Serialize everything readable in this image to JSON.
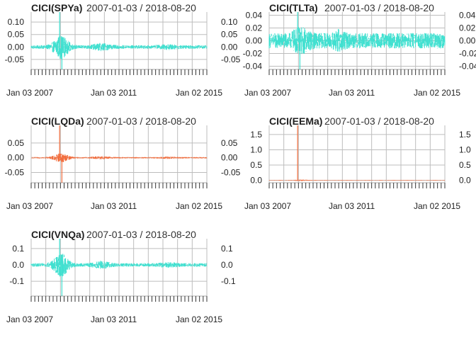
{
  "chart_data": [
    {
      "type": "line",
      "title": "CICI(SPYa)",
      "subtitle": "2007-01-03 / 2018-08-20",
      "color": "#40E0D0",
      "x_tick_labels": [
        "Jan 03 2007",
        "Jan 03 2011",
        "Jan 02 2015"
      ],
      "y_ticks": [
        0.1,
        0.05,
        0.0,
        -0.05
      ],
      "y_tick_labels": [
        "0.10",
        "0.05",
        "0.00",
        "-0.05"
      ],
      "ylim": [
        -0.09,
        0.14
      ],
      "grid": true,
      "profile": "vol_spike",
      "spike": 0.14,
      "neg_spike": -0.09,
      "base_amp": 0.012,
      "peak_amp": 0.06
    },
    {
      "type": "line",
      "title": "CICI(TLTa)",
      "subtitle": "2007-01-03 / 2018-08-20",
      "color": "#40E0D0",
      "x_tick_labels": [
        "Jan 03 2007",
        "Jan 03 2011",
        "Jan 02 2015"
      ],
      "y_ticks": [
        0.04,
        0.02,
        0.0,
        -0.02,
        -0.04
      ],
      "y_tick_labels": [
        "0.04",
        "0.02",
        "0.00",
        "-0.02",
        "-0.04"
      ],
      "ylim": [
        -0.045,
        0.045
      ],
      "grid": true,
      "profile": "uniform",
      "spike": 0.045,
      "neg_spike": -0.045,
      "base_amp": 0.012,
      "peak_amp": 0.025
    },
    {
      "type": "line",
      "title": "CICI(LQDa)",
      "subtitle": "2007-01-03 / 2018-08-20",
      "color": "#F26D3D",
      "x_tick_labels": [
        "Jan 03 2007",
        "Jan 03 2011",
        "Jan 02 2015"
      ],
      "y_ticks": [
        0.05,
        0.0,
        -0.05
      ],
      "y_tick_labels": [
        "0.05",
        "0.00",
        "-0.05"
      ],
      "ylim": [
        -0.085,
        0.11
      ],
      "grid": true,
      "profile": "vol_spike",
      "spike": 0.11,
      "neg_spike": -0.085,
      "base_amp": 0.004,
      "peak_amp": 0.03
    },
    {
      "type": "line",
      "title": "CICI(EEMa)",
      "subtitle": "2007-01-03 / 2018-08-20",
      "color": "#F26D3D",
      "x_tick_labels": [
        "Jan 03 2007",
        "Jan 03 2011",
        "Jan 02 2015"
      ],
      "y_ticks": [
        1.5,
        1.0,
        0.5,
        0.0
      ],
      "y_tick_labels": [
        "1.5",
        "1.0",
        "0.5",
        "0.0"
      ],
      "ylim": [
        -0.08,
        1.8
      ],
      "grid": true,
      "profile": "single_spike",
      "spike": 1.8,
      "neg_spike": -0.02,
      "base_amp": 0.01,
      "peak_amp": 0.09
    },
    {
      "type": "line",
      "title": "CICI(VNQa)",
      "subtitle": "2007-01-03 / 2018-08-20",
      "color": "#40E0D0",
      "x_tick_labels": [
        "Jan 03 2007",
        "Jan 03 2011",
        "Jan 02 2015"
      ],
      "y_ticks": [
        0.1,
        0.0,
        -0.1
      ],
      "y_tick_labels": [
        "0.1",
        "0.0",
        "-0.1"
      ],
      "ylim": [
        -0.19,
        0.16
      ],
      "grid": true,
      "profile": "vol_spike",
      "spike": 0.16,
      "neg_spike": -0.19,
      "base_amp": 0.018,
      "peak_amp": 0.09
    }
  ]
}
